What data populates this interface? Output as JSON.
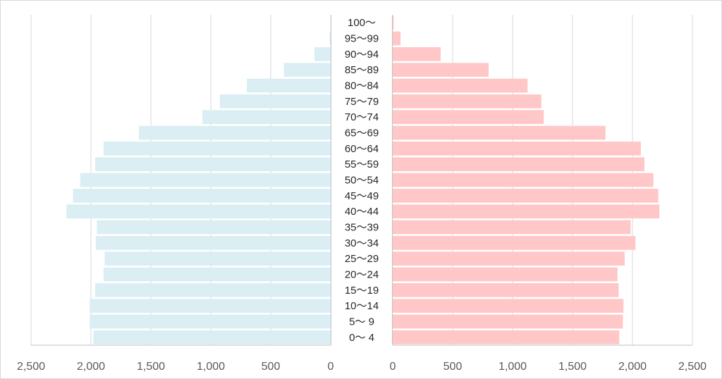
{
  "chart_data": {
    "type": "bar",
    "orientation": "horizontal",
    "layout": "population-pyramid",
    "categories": [
      "100〜",
      "95〜99",
      "90〜94",
      "85〜89",
      "80〜84",
      "75〜79",
      "70〜74",
      "65〜69",
      "60〜64",
      "55〜59",
      "50〜54",
      "45〜49",
      "40〜44",
      "35〜39",
      "30〜34",
      "25〜29",
      "20〜24",
      "15〜19",
      "10〜14",
      "5〜 9",
      "0〜 4"
    ],
    "series": [
      {
        "side": "left",
        "color": "#daeef3",
        "values": [
          2,
          8,
          135,
          390,
          700,
          925,
          1070,
          1600,
          1895,
          1965,
          2090,
          2150,
          2205,
          1950,
          1960,
          1885,
          1895,
          1965,
          2010,
          2010,
          1980
        ]
      },
      {
        "side": "right",
        "color": "#ffc7c8",
        "values": [
          8,
          65,
          400,
          800,
          1125,
          1240,
          1260,
          1775,
          2070,
          2100,
          2175,
          2215,
          2225,
          1985,
          2025,
          1935,
          1875,
          1885,
          1925,
          1920,
          1890
        ]
      }
    ],
    "xlim": [
      0,
      2500
    ],
    "x_ticks": [
      "2,500",
      "2,000",
      "1,500",
      "1,000",
      "500",
      "0"
    ],
    "x_ticks_right": [
      "0",
      "500",
      "1,000",
      "1,500",
      "2,000",
      "2,500"
    ],
    "title": "",
    "xlabel": "",
    "ylabel": "",
    "grid": "vertical",
    "legend": "none",
    "colors": {
      "gridline": "#d9d9d9",
      "axis": "#bfbfbf",
      "tick_text": "#595959",
      "label_text": "#262626"
    }
  }
}
